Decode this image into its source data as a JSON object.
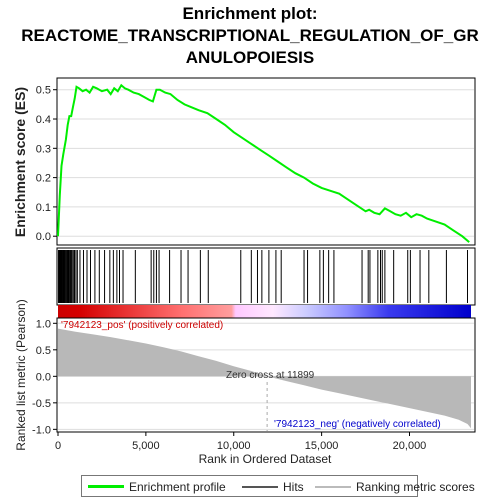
{
  "chart_data": {
    "type": "line",
    "title_lines": [
      "Enrichment plot:",
      "REACTOME_TRANSCRIPTIONAL_REGULATION_OF_GR",
      "ANULOPOIESIS"
    ],
    "ylabel_top": "Enrichment score (ES)",
    "ylabel_bottom": "Ranked list metric (Pearson)",
    "xlabel": "Rank in Ordered Dataset",
    "xlim": [
      0,
      24000
    ],
    "x_ticks": [
      0,
      5000,
      10000,
      15000,
      20000
    ],
    "x_tick_labels": [
      "0",
      "5,000",
      "10,000",
      "15,000",
      "20,000"
    ],
    "es_ylim": [
      -0.03,
      0.54
    ],
    "es_ticks": [
      0.0,
      0.1,
      0.2,
      0.3,
      0.4,
      0.5
    ],
    "es_tick_labels": [
      "0.0",
      "0.1",
      "0.2",
      "0.3",
      "0.4",
      "0.5"
    ],
    "metric_ylim": [
      -1.05,
      1.1
    ],
    "metric_ticks": [
      -1.0,
      -0.5,
      0.0,
      0.5,
      1.0
    ],
    "metric_tick_labels": [
      "-1.0",
      "-0.5",
      "0.0",
      "0.5",
      "1.0"
    ],
    "enrichment_profile": {
      "name": "Enrichment profile",
      "color": "#00ee00",
      "x": [
        0,
        100,
        200,
        300,
        450,
        550,
        650,
        750,
        850,
        950,
        1050,
        1200,
        1400,
        1600,
        1800,
        2000,
        2200,
        2500,
        2800,
        3000,
        3200,
        3400,
        3600,
        3800,
        4000,
        4300,
        4600,
        4900,
        5200,
        5400,
        5600,
        5800,
        6100,
        6400,
        6800,
        7200,
        7600,
        8000,
        8500,
        9000,
        9500,
        10000,
        10500,
        11000,
        11500,
        12000,
        12500,
        13000,
        13500,
        14000,
        14500,
        15000,
        15500,
        16000,
        16500,
        17000,
        17500,
        17700,
        18000,
        18300,
        18600,
        18900,
        19200,
        19500,
        19800,
        20100,
        20400,
        20700,
        21000,
        21500,
        22000,
        22500,
        23000,
        23400
      ],
      "es": [
        0.0,
        0.14,
        0.24,
        0.28,
        0.33,
        0.38,
        0.41,
        0.41,
        0.44,
        0.47,
        0.51,
        0.505,
        0.495,
        0.5,
        0.49,
        0.51,
        0.505,
        0.495,
        0.5,
        0.485,
        0.505,
        0.495,
        0.515,
        0.505,
        0.5,
        0.49,
        0.485,
        0.475,
        0.465,
        0.46,
        0.5,
        0.5,
        0.49,
        0.485,
        0.465,
        0.45,
        0.44,
        0.43,
        0.42,
        0.4,
        0.38,
        0.355,
        0.335,
        0.315,
        0.295,
        0.275,
        0.255,
        0.235,
        0.215,
        0.2,
        0.18,
        0.165,
        0.155,
        0.145,
        0.125,
        0.105,
        0.085,
        0.09,
        0.08,
        0.075,
        0.095,
        0.085,
        0.075,
        0.07,
        0.08,
        0.065,
        0.075,
        0.07,
        0.06,
        0.05,
        0.04,
        0.02,
        0.0,
        -0.02
      ]
    },
    "hits": {
      "name": "Hits",
      "color": "#000000",
      "x": [
        30,
        60,
        90,
        120,
        150,
        180,
        220,
        260,
        300,
        340,
        380,
        420,
        470,
        520,
        570,
        620,
        680,
        740,
        800,
        870,
        940,
        1020,
        1100,
        1250,
        1450,
        1650,
        1850,
        2100,
        2350,
        2650,
        2950,
        3150,
        3350,
        3500,
        3700,
        4400,
        5300,
        5450,
        5600,
        5750,
        6350,
        7000,
        7400,
        8100,
        8550,
        10400,
        11000,
        11350,
        11600,
        12000,
        12400,
        12700,
        14000,
        14200,
        14900,
        15100,
        15400,
        15700,
        17300,
        17650,
        17750,
        18200,
        18350,
        18450,
        18600,
        19100,
        19900,
        20050,
        20600,
        21100,
        22100,
        23300
      ]
    },
    "ranking_metric": {
      "name": "Ranking metric scores",
      "x": [
        0,
        1000,
        2000,
        3000,
        4000,
        5000,
        6000,
        7000,
        8000,
        9000,
        10000,
        11000,
        11899,
        13000,
        14000,
        15000,
        16000,
        17000,
        18000,
        19000,
        20000,
        21000,
        22000,
        22800,
        23300,
        23500
      ],
      "metric": [
        0.9,
        0.84,
        0.79,
        0.74,
        0.68,
        0.62,
        0.55,
        0.47,
        0.38,
        0.29,
        0.19,
        0.1,
        0.0,
        -0.09,
        -0.17,
        -0.25,
        -0.32,
        -0.39,
        -0.46,
        -0.53,
        -0.6,
        -0.67,
        -0.74,
        -0.82,
        -0.9,
        -0.98
      ]
    },
    "annotations": {
      "pos_label": "'7942123_pos' (positively correlated)",
      "neg_label": "'7942123_neg' (negatively correlated)",
      "zero_cross": "Zero cross at 11899",
      "zero_cross_x": 11899
    },
    "heatbar_colors": [
      "#cc0000",
      "#ff8a8a",
      "#ffd6ff",
      "#d6d6ff",
      "#8a8aff",
      "#0000cc"
    ],
    "legend_placement": "bottom"
  },
  "legend": {
    "items": [
      {
        "label": "Enrichment profile",
        "color": "#00ee00"
      },
      {
        "label": "Hits",
        "color": "#555555"
      },
      {
        "label": "Ranking metric scores",
        "color": "#bbbbbb"
      }
    ]
  }
}
